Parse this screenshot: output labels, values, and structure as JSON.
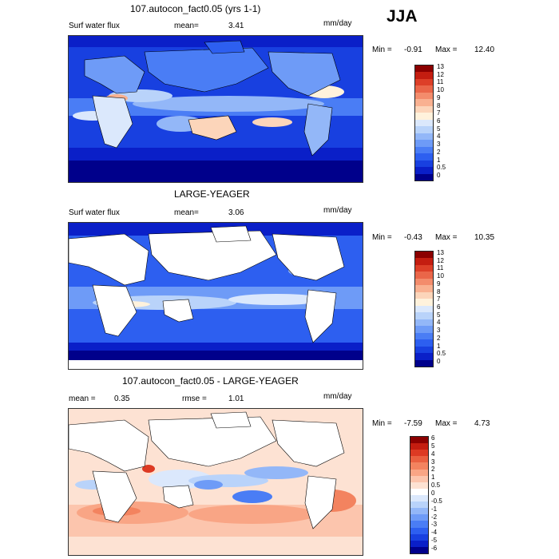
{
  "season": "JJA",
  "colors": {
    "abs_scale": [
      "#00008b",
      "#0a1fc8",
      "#1840e0",
      "#2d5ff0",
      "#4a7df5",
      "#6e9bf7",
      "#93b7f8",
      "#b9d3fa",
      "#dbe8fc",
      "#fff2dc",
      "#fcd5ba",
      "#f9b191",
      "#f38c6c",
      "#ea6649",
      "#dd3f28",
      "#c41d10",
      "#8b0000"
    ],
    "diff_scale": [
      "#00008b",
      "#0a1fc8",
      "#1840e0",
      "#2d5ff0",
      "#4a7df5",
      "#6e9bf7",
      "#93b7f8",
      "#b9d3fa",
      "#dbe8fc",
      "#ffffff",
      "#fde2d3",
      "#fcc5ad",
      "#f9a585",
      "#f3835f",
      "#ea6040",
      "#dd3a23",
      "#c41d10",
      "#8b0000"
    ],
    "land": "#ffffff"
  },
  "panels": [
    {
      "title": "107.autocon_fact0.05 (yrs 1-1)",
      "left_label": "Surf water flux",
      "stat_label": "mean=",
      "stat_value": "3.41",
      "units": "mm/day",
      "min_label": "Min =",
      "min_value": "-0.91",
      "max_label": "Max =",
      "max_value": "12.40",
      "colorbar_labels": [
        "13",
        "12",
        "11",
        "10",
        "9",
        "8",
        "7",
        "6",
        "5",
        "4",
        "3",
        "2",
        "1",
        "0.5",
        "0"
      ]
    },
    {
      "title": "LARGE-YEAGER",
      "left_label": "Surf water flux",
      "stat_label": "mean=",
      "stat_value": "3.06",
      "units": "mm/day",
      "min_label": "Min =",
      "min_value": "-0.43",
      "max_label": "Max =",
      "max_value": "10.35",
      "colorbar_labels": [
        "13",
        "12",
        "11",
        "10",
        "9",
        "8",
        "7",
        "6",
        "5",
        "4",
        "3",
        "2",
        "1",
        "0.5",
        "0"
      ]
    },
    {
      "title": "107.autocon_fact0.05 - LARGE-YEAGER",
      "left_label": "mean =",
      "left_value": "0.35",
      "stat_label": "rmse =",
      "stat_value": "1.01",
      "units": "mm/day",
      "min_label": "Min =",
      "min_value": "-7.59",
      "max_label": "Max =",
      "max_value": "4.73",
      "colorbar_labels": [
        "6",
        "5",
        "4",
        "3",
        "2",
        "1",
        "0.5",
        "0",
        "-0.5",
        "-1",
        "-2",
        "-3",
        "-4",
        "-5",
        "-6"
      ]
    }
  ]
}
